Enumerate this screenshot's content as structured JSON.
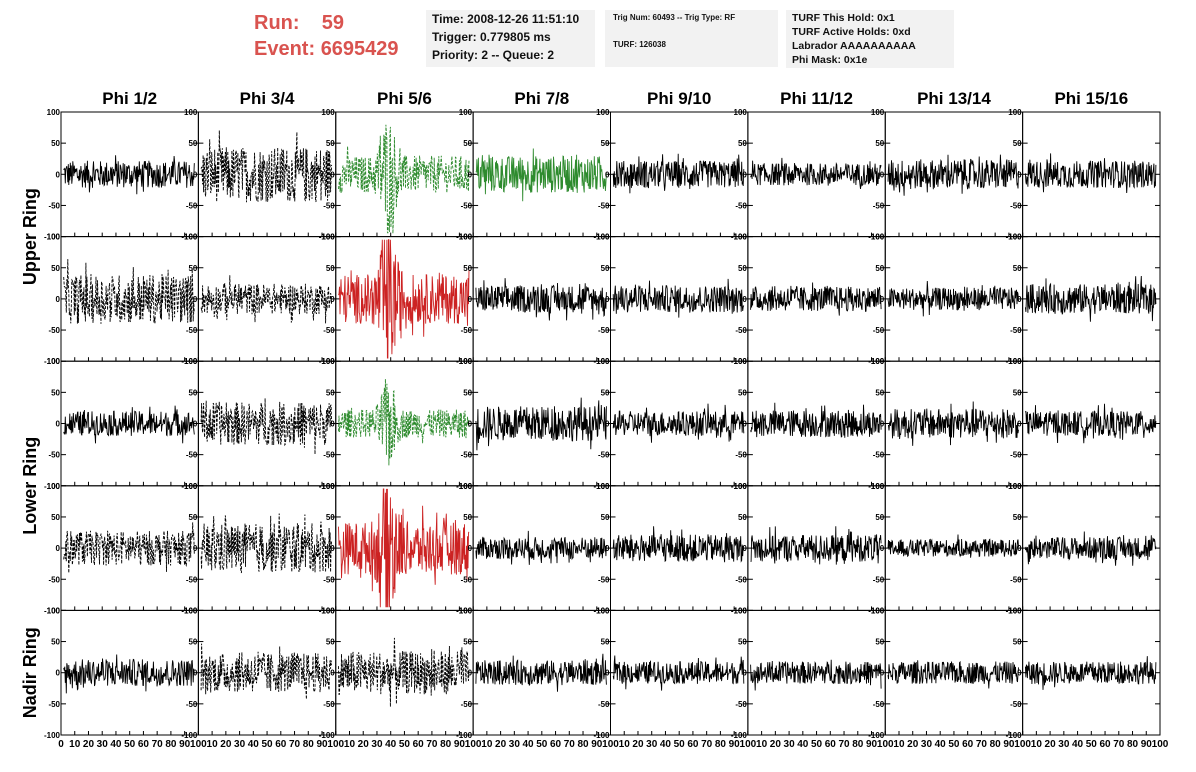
{
  "header": {
    "run_label": "Run:",
    "run_value": "59",
    "event_label": "Event:",
    "event_value": "6695429"
  },
  "info_boxes": {
    "time": "Time: 2008-12-26 11:51:10",
    "trigger": "Trigger: 0.779805 ms",
    "priority": "Priority: 2 -- Queue: 2",
    "trig_num": "Trig Num: 60493 -- Trig Type: RF",
    "turf": "TURF: 126038",
    "turf_this_hold": "TURF This Hold: 0x1",
    "turf_active_holds": "TURF Active Holds: 0xd",
    "labrador": "Labrador AAAAAAAAAA",
    "phi_mask": "Phi Mask: 0x1e"
  },
  "chart_data": {
    "type": "line",
    "column_labels": [
      "Phi 1/2",
      "Phi 3/4",
      "Phi 5/6",
      "Phi 7/8",
      "Phi 9/10",
      "Phi 11/12",
      "Phi 13/14",
      "Phi 15/16"
    ],
    "ring_labels": [
      "Upper Ring",
      "Lower Ring",
      "Nadir Ring"
    ],
    "ring_row_spans": [
      [
        0,
        1
      ],
      [
        2,
        3
      ],
      [
        4,
        4
      ]
    ],
    "xlim": [
      0,
      100
    ],
    "ylim": [
      -100,
      100
    ],
    "x_tick_labels": [
      "0",
      "10",
      "20",
      "30",
      "40",
      "50",
      "60",
      "70",
      "80",
      "90",
      "100"
    ],
    "y_tick_labels": [
      "100",
      "50",
      "0",
      "-50",
      "-100"
    ],
    "colors": {
      "default": "#000000",
      "green": "#2e8b2e",
      "red": "#cc2222"
    },
    "panel_styles": [
      [
        "solid",
        "dashed",
        "dashed-green",
        "solid-green",
        "solid",
        "solid",
        "solid",
        "solid"
      ],
      [
        "dashed",
        "dashed",
        "solid-red",
        "solid",
        "solid",
        "solid",
        "solid",
        "solid"
      ],
      [
        "solid",
        "dashed",
        "dashed-green",
        "solid",
        "solid",
        "solid",
        "solid",
        "solid"
      ],
      [
        "dashed",
        "dashed",
        "solid-red",
        "solid",
        "solid",
        "solid",
        "solid",
        "solid"
      ],
      [
        "solid",
        "dashed",
        "dashed",
        "solid",
        "solid",
        "solid",
        "solid",
        "solid"
      ]
    ],
    "panel_amplitude": [
      [
        22,
        45,
        60,
        30,
        22,
        18,
        24,
        22
      ],
      [
        40,
        25,
        80,
        22,
        22,
        20,
        18,
        24
      ],
      [
        20,
        35,
        45,
        28,
        20,
        22,
        24,
        20
      ],
      [
        28,
        40,
        85,
        18,
        22,
        22,
        14,
        18
      ],
      [
        22,
        32,
        35,
        20,
        18,
        18,
        18,
        18
      ]
    ],
    "note": "Waveforms are noise-like traces (voltage vs time); values shown only via rendered shapes."
  }
}
